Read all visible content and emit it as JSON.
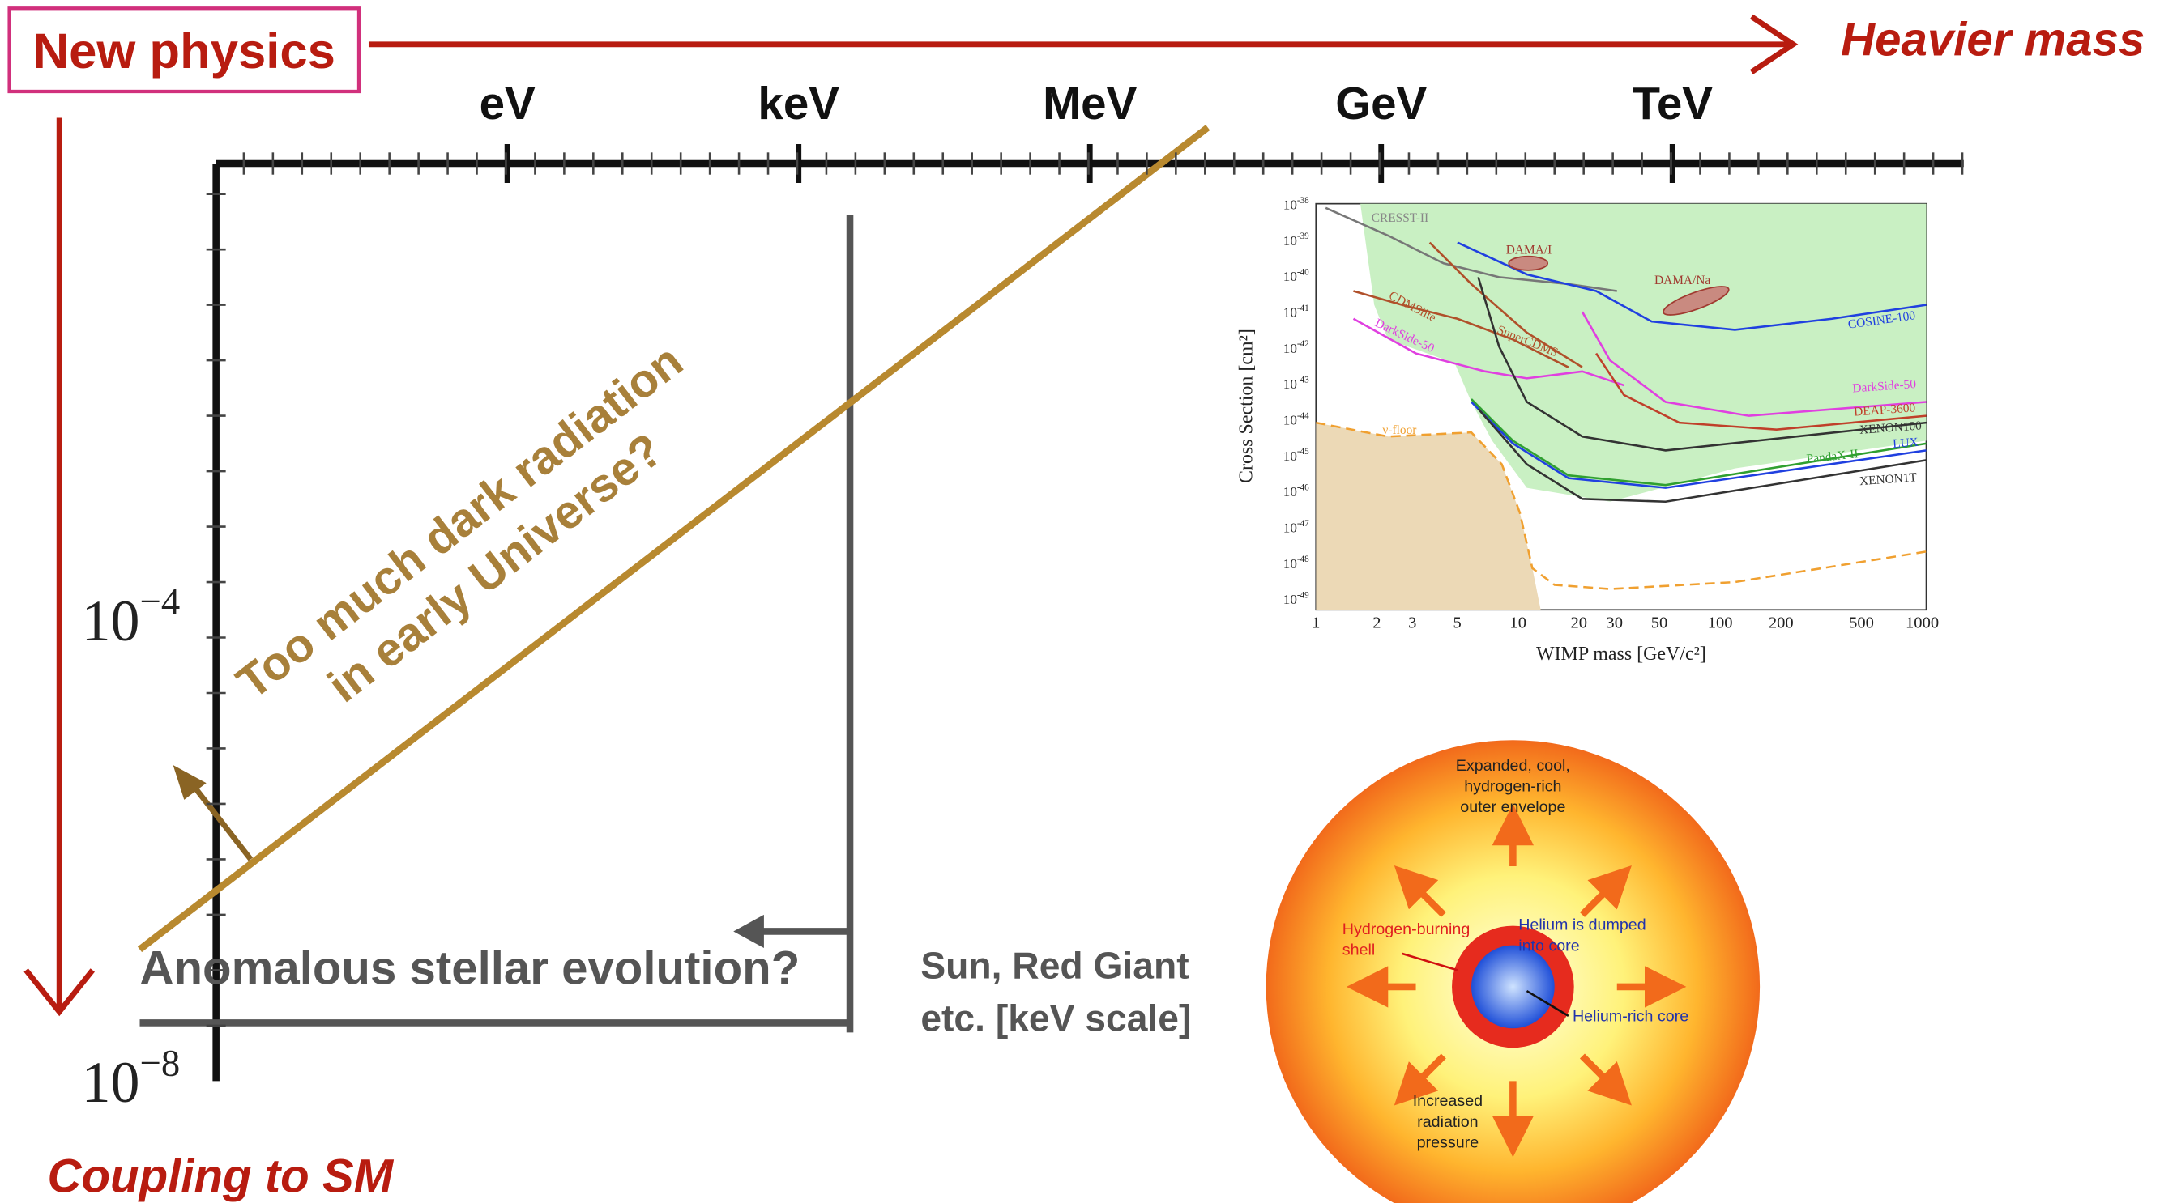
{
  "labels": {
    "new_physics": "New physics",
    "heavier_mass": "Heavier mass",
    "coupling": "Coupling to SM"
  },
  "mass_scale": [
    "eV",
    "keV",
    "MeV",
    "GeV",
    "TeV"
  ],
  "coupling_ticks": [
    {
      "base": "10",
      "exp": "−4"
    },
    {
      "base": "10",
      "exp": "−8"
    }
  ],
  "dark_radiation": {
    "line1": "Too much dark radiation",
    "line2": "in early Universe?"
  },
  "stellar": "Anomalous stellar evolution?",
  "sun_note": {
    "line1": "Sun, Red Giant",
    "line2": "etc. [keV scale]"
  },
  "wimp_plot": {
    "y_label": "Cross Section [cm²]",
    "x_label": "WIMP mass [GeV/c²]",
    "y_ticks": [
      {
        "base": "10",
        "exp": "-38"
      },
      {
        "base": "10",
        "exp": "-39"
      },
      {
        "base": "10",
        "exp": "-40"
      },
      {
        "base": "10",
        "exp": "-41"
      },
      {
        "base": "10",
        "exp": "-42"
      },
      {
        "base": "10",
        "exp": "-43"
      },
      {
        "base": "10",
        "exp": "-44"
      },
      {
        "base": "10",
        "exp": "-45"
      },
      {
        "base": "10",
        "exp": "-46"
      },
      {
        "base": "10",
        "exp": "-47"
      },
      {
        "base": "10",
        "exp": "-48"
      },
      {
        "base": "10",
        "exp": "-49"
      }
    ],
    "x_ticks": [
      "1",
      "2",
      "3",
      "5",
      "10",
      "20",
      "30",
      "50",
      "100",
      "200",
      "500",
      "1000"
    ],
    "curves": [
      "CRESST-II",
      "DAMA/I",
      "DAMA/Na",
      "CDMSlite",
      "SuperCDMS",
      "DarkSide-50",
      "COSINE-100",
      "DarkSide-50",
      "DEAP-3600",
      "XENON100",
      "LUX",
      "PandaX-II",
      "XENON1T"
    ],
    "nu_floor": "ν-floor"
  },
  "red_giant": {
    "envelope": [
      "Expanded, cool,",
      "hydrogen-rich",
      "outer envelope"
    ],
    "shell": [
      "Hydrogen-burning",
      "shell"
    ],
    "dumped": [
      "Helium is dumped",
      "into core"
    ],
    "core": "Helium-rich core",
    "pressure": [
      "Increased",
      "radiation",
      "pressure"
    ]
  }
}
